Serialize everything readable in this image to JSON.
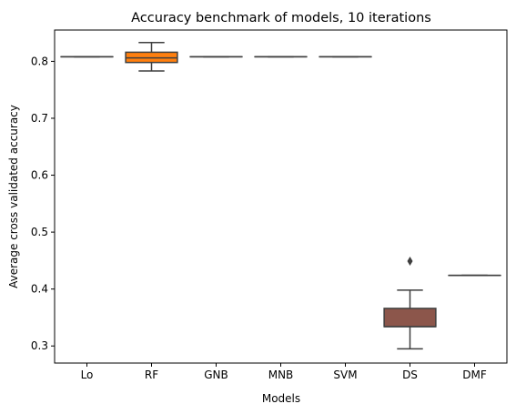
{
  "chart_data": {
    "type": "box",
    "title": "Accuracy benchmark of models, 10 iterations",
    "xlabel": "Models",
    "ylabel": "Average cross validated accuracy",
    "ylim": [
      0.27,
      0.855
    ],
    "yticks": [
      "0.3",
      "0.4",
      "0.5",
      "0.6",
      "0.7",
      "0.8"
    ],
    "grid": false,
    "categories": [
      "Lo",
      "RF",
      "GNB",
      "MNB",
      "SVM",
      "DS",
      "DMF"
    ],
    "boxes": [
      {
        "name": "Lo",
        "color": "#1f77b4",
        "whislo": 0.808,
        "q1": 0.808,
        "med": 0.808,
        "q3": 0.808,
        "whishi": 0.808,
        "fliers": []
      },
      {
        "name": "RF",
        "color": "#ff7f0e",
        "whislo": 0.783,
        "q1": 0.798,
        "med": 0.806,
        "q3": 0.816,
        "whishi": 0.833,
        "fliers": []
      },
      {
        "name": "GNB",
        "color": "#2ca02c",
        "whislo": 0.808,
        "q1": 0.808,
        "med": 0.808,
        "q3": 0.808,
        "whishi": 0.808,
        "fliers": []
      },
      {
        "name": "MNB",
        "color": "#d62728",
        "whislo": 0.808,
        "q1": 0.808,
        "med": 0.808,
        "q3": 0.808,
        "whishi": 0.808,
        "fliers": []
      },
      {
        "name": "SVM",
        "color": "#9467bd",
        "whislo": 0.808,
        "q1": 0.808,
        "med": 0.808,
        "q3": 0.808,
        "whishi": 0.808,
        "fliers": []
      },
      {
        "name": "DS",
        "color": "#8c564b",
        "whislo": 0.295,
        "q1": 0.334,
        "med": 0.334,
        "q3": 0.366,
        "whishi": 0.398,
        "fliers": [
          0.449
        ]
      },
      {
        "name": "DMF",
        "color": "#e377c2",
        "whislo": 0.424,
        "q1": 0.424,
        "med": 0.424,
        "q3": 0.424,
        "whishi": 0.424,
        "fliers": []
      }
    ]
  }
}
